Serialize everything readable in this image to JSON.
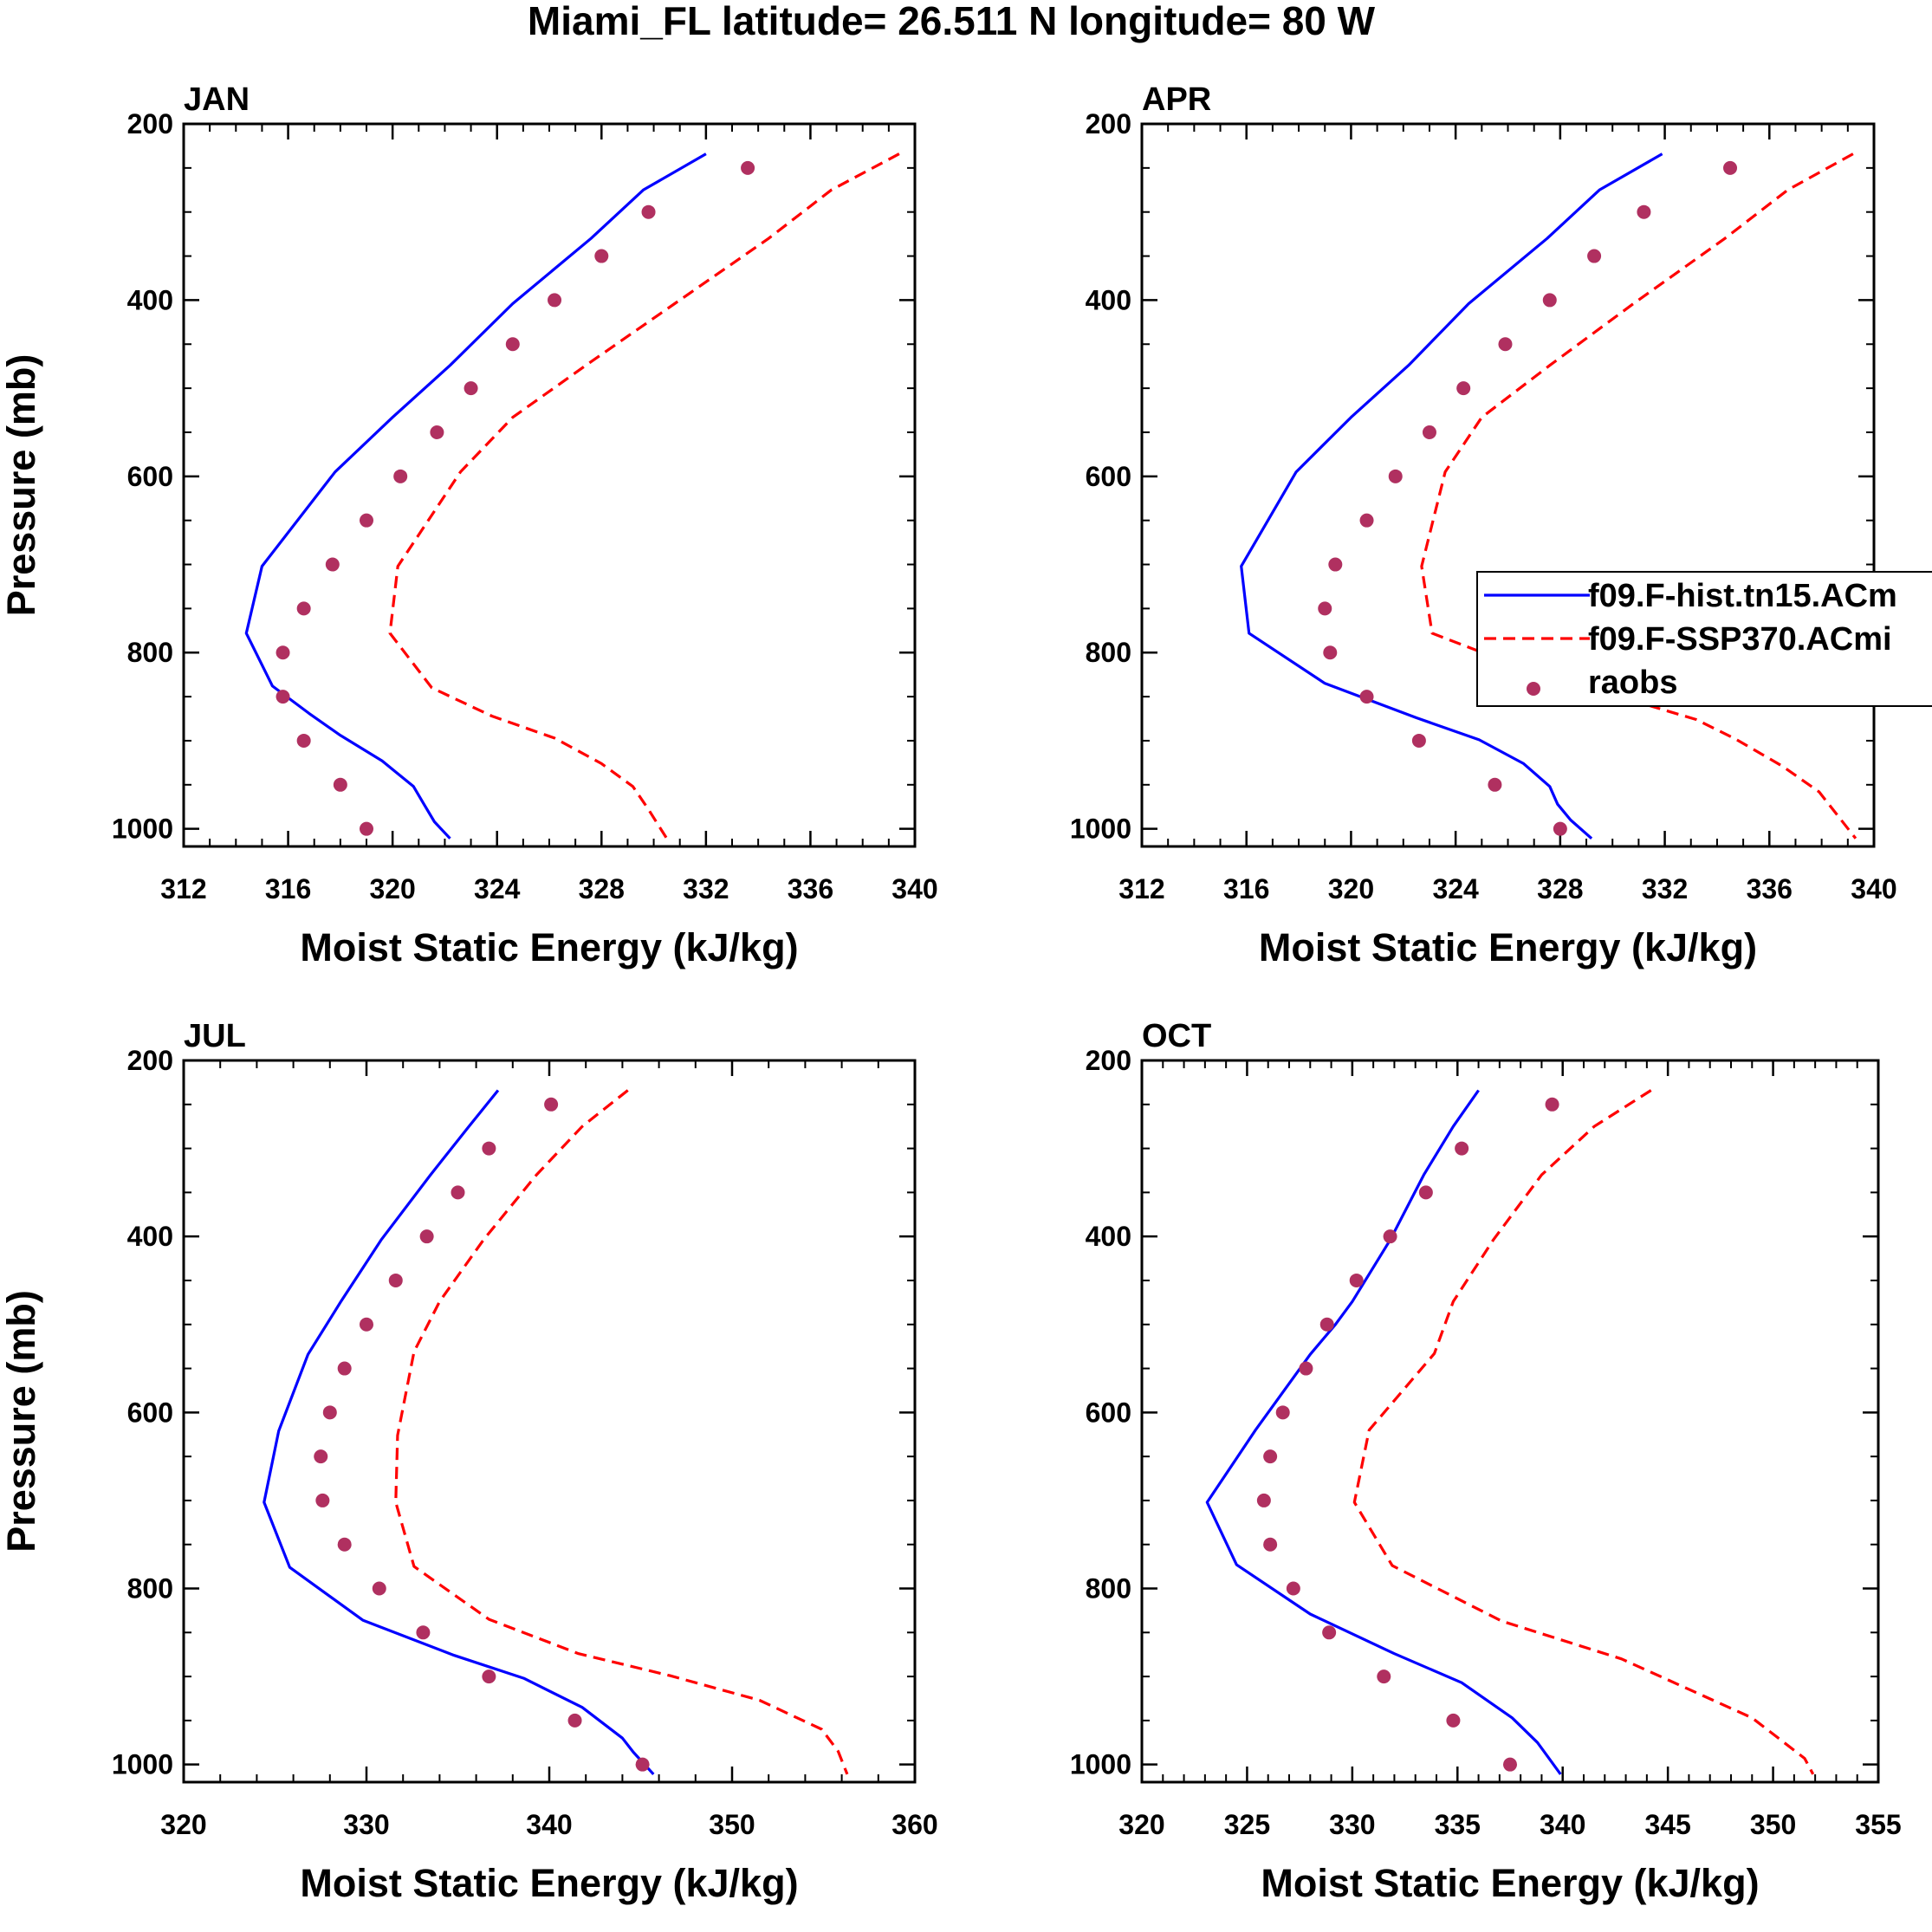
{
  "title": "Miami_FL  latitude= 26.511 N longitude= 80 W",
  "legend": [
    {
      "label": "f09.F-hist.tn15.ACm",
      "style": "solid",
      "color": "#0000ff"
    },
    {
      "label": "f09.F-SSP370.ACmi",
      "style": "dashed",
      "color": "#ff0000"
    },
    {
      "label": "raobs",
      "style": "marker",
      "color": "#b03060"
    }
  ],
  "chart_data": [
    {
      "type": "line",
      "title": "JAN",
      "xlabel": "Moist Static Energy (kJ/kg)",
      "ylabel": "Pressure (mb)",
      "xlim": [
        312,
        340
      ],
      "ylim": [
        200,
        1020
      ],
      "xticks": [
        312,
        316,
        320,
        324,
        328,
        332,
        336,
        340
      ],
      "yticks": [
        200,
        400,
        600,
        800,
        1000
      ],
      "series": [
        {
          "name": "f09.F-hist.tn15.ACm",
          "style": "solid",
          "color": "#0000ff",
          "x": [
            332.0,
            329.6,
            327.6,
            324.6,
            322.2,
            320.0,
            317.8,
            315.0,
            314.4,
            315.4,
            316.8,
            318.0,
            319.6,
            320.8,
            321.2,
            321.6,
            322.2
          ],
          "y": [
            234,
            275,
            330,
            404,
            474,
            533,
            595,
            702,
            778,
            838,
            869,
            894,
            923,
            952,
            972,
            992,
            1011
          ]
        },
        {
          "name": "f09.F-SSP370.ACmi",
          "style": "dashed",
          "color": "#ff0000",
          "x": [
            339.4,
            336.8,
            334.4,
            330.8,
            327.4,
            324.6,
            322.6,
            320.2,
            319.9,
            321.5,
            323.8,
            326.2,
            328.0,
            329.2,
            329.8,
            330.5
          ],
          "y": [
            234,
            275,
            330,
            404,
            474,
            533,
            595,
            702,
            778,
            840,
            872,
            897,
            926,
            952,
            978,
            1011
          ]
        },
        {
          "name": "raobs",
          "style": "marker",
          "color": "#b03060",
          "x": [
            333.6,
            329.8,
            328.0,
            326.2,
            324.6,
            323.0,
            321.7,
            320.3,
            319.0,
            317.7,
            316.6,
            315.8,
            315.8,
            316.6,
            318.0,
            319.0
          ],
          "y": [
            250,
            300,
            350,
            400,
            450,
            500,
            550,
            600,
            650,
            700,
            750,
            800,
            850,
            900,
            950,
            1000
          ]
        }
      ]
    },
    {
      "type": "line",
      "title": "APR",
      "xlabel": "Moist Static Energy (kJ/kg)",
      "ylabel": "",
      "xlim": [
        312,
        340
      ],
      "ylim": [
        200,
        1020
      ],
      "xticks": [
        312,
        316,
        320,
        324,
        328,
        332,
        336,
        340
      ],
      "yticks": [
        200,
        400,
        600,
        800,
        1000
      ],
      "series": [
        {
          "name": "f09.F-hist.tn15.ACm",
          "style": "solid",
          "color": "#0000ff",
          "x": [
            331.9,
            329.5,
            327.5,
            324.5,
            322.2,
            320.0,
            317.9,
            315.8,
            316.1,
            319.0,
            322.5,
            324.9,
            326.6,
            327.6,
            327.9,
            328.4,
            329.2
          ],
          "y": [
            234,
            275,
            330,
            404,
            474,
            533,
            595,
            702,
            778,
            835,
            874,
            899,
            926,
            952,
            972,
            990,
            1011
          ]
        },
        {
          "name": "f09.F-SSP370.ACmi",
          "style": "dashed",
          "color": "#ff0000",
          "x": [
            339.2,
            336.7,
            334.3,
            330.8,
            327.6,
            325.0,
            323.6,
            322.7,
            323.1,
            325.9,
            329.8,
            333.2,
            334.7,
            336.5,
            337.9,
            339.3
          ],
          "y": [
            234,
            275,
            330,
            404,
            474,
            533,
            595,
            702,
            778,
            810,
            846,
            876,
            898,
            929,
            958,
            1011
          ]
        },
        {
          "name": "raobs",
          "style": "marker",
          "color": "#b03060",
          "x": [
            334.5,
            331.2,
            329.3,
            327.6,
            325.9,
            324.3,
            323.0,
            321.7,
            320.6,
            319.4,
            319.0,
            319.2,
            320.6,
            322.6,
            325.5,
            328.0
          ],
          "y": [
            250,
            300,
            350,
            400,
            450,
            500,
            550,
            600,
            650,
            700,
            750,
            800,
            850,
            900,
            950,
            1000
          ]
        }
      ]
    },
    {
      "type": "line",
      "title": "JUL",
      "xlabel": "Moist Static Energy (kJ/kg)",
      "ylabel": "Pressure (mb)",
      "xlim": [
        320,
        360
      ],
      "ylim": [
        200,
        1020
      ],
      "xticks": [
        320,
        330,
        340,
        350,
        360
      ],
      "yticks": [
        200,
        400,
        600,
        800,
        1000
      ],
      "series": [
        {
          "name": "f09.F-hist.tn15.ACm",
          "style": "solid",
          "color": "#0000ff",
          "x": [
            337.2,
            335.6,
            333.5,
            330.8,
            328.6,
            326.8,
            325.2,
            324.4,
            325.8,
            329.8,
            334.8,
            338.6,
            341.8,
            344.0,
            344.6,
            345.7
          ],
          "y": [
            234,
            275,
            330,
            404,
            474,
            534,
            621,
            702,
            776,
            836,
            876,
            902,
            935,
            970,
            986,
            1011
          ]
        },
        {
          "name": "f09.F-SSP370.ACmi",
          "style": "dashed",
          "color": "#ff0000",
          "x": [
            344.3,
            341.8,
            339.3,
            336.4,
            334.0,
            332.6,
            331.7,
            331.6,
            332.6,
            336.7,
            341.6,
            346.6,
            351.5,
            354.9,
            355.8,
            356.3
          ],
          "y": [
            234,
            275,
            330,
            404,
            474,
            531,
            626,
            702,
            775,
            835,
            874,
            899,
            927,
            960,
            985,
            1011
          ]
        },
        {
          "name": "raobs",
          "style": "marker",
          "color": "#b03060",
          "x": [
            340.1,
            336.7,
            335.0,
            333.3,
            331.6,
            330.0,
            328.8,
            328.0,
            327.5,
            327.6,
            328.8,
            330.7,
            333.1,
            336.7,
            341.4,
            345.1
          ],
          "y": [
            250,
            300,
            350,
            400,
            450,
            500,
            550,
            600,
            650,
            700,
            750,
            800,
            850,
            900,
            950,
            1000
          ]
        }
      ]
    },
    {
      "type": "line",
      "title": "OCT",
      "xlabel": "Moist Static Energy (kJ/kg)",
      "ylabel": "",
      "xlim": [
        320,
        355
      ],
      "ylim": [
        200,
        1020
      ],
      "xticks": [
        320,
        325,
        330,
        335,
        340,
        345,
        350,
        355
      ],
      "yticks": [
        200,
        400,
        600,
        800,
        1000
      ],
      "series": [
        {
          "name": "f09.F-hist.tn15.ACm",
          "style": "solid",
          "color": "#0000ff",
          "x": [
            336.0,
            334.8,
            333.4,
            331.8,
            330.0,
            329.2,
            328.0,
            325.4,
            323.1,
            324.5,
            328.0,
            332.0,
            335.2,
            337.6,
            338.8,
            339.9
          ],
          "y": [
            234,
            275,
            330,
            404,
            474,
            500,
            534,
            620,
            702,
            773,
            829,
            874,
            907,
            947,
            975,
            1011
          ]
        },
        {
          "name": "f09.F-SSP370.ACmi",
          "style": "dashed",
          "color": "#ff0000",
          "x": [
            344.2,
            341.5,
            339.0,
            336.7,
            334.8,
            333.9,
            330.8,
            330.1,
            331.9,
            337.1,
            342.8,
            349.0,
            351.5,
            351.9
          ],
          "y": [
            234,
            275,
            330,
            404,
            474,
            533,
            620,
            702,
            774,
            837,
            880,
            947,
            993,
            1011
          ]
        },
        {
          "name": "raobs",
          "style": "marker",
          "color": "#b03060",
          "x": [
            339.5,
            335.2,
            333.5,
            331.8,
            330.2,
            328.8,
            327.8,
            326.7,
            326.1,
            325.8,
            326.1,
            327.2,
            328.9,
            331.5,
            334.8,
            337.5
          ],
          "y": [
            250,
            300,
            350,
            400,
            450,
            500,
            550,
            600,
            650,
            700,
            750,
            800,
            850,
            900,
            950,
            1000
          ]
        }
      ]
    }
  ]
}
